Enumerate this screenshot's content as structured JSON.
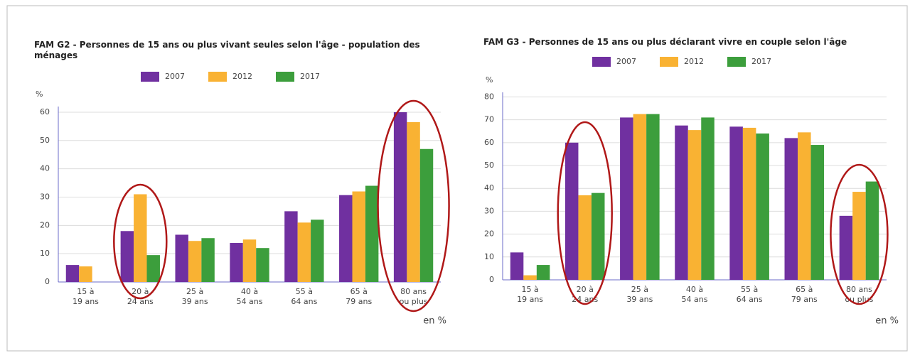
{
  "chart_data": [
    {
      "type": "bar",
      "title": "FAM G2 - Personnes de 15 ans ou plus vivant seules selon l'âge - population des ménages",
      "y_label": "%",
      "note": "en %",
      "categories": [
        "15 à\n19 ans",
        "20 à\n24 ans",
        "25 à\n39 ans",
        "40 à\n54 ans",
        "55 à\n64 ans",
        "65 à\n79 ans",
        "80 ans\nou plus"
      ],
      "series": [
        {
          "name": "2007",
          "color": "#7030a0",
          "values": [
            6,
            18,
            16.7,
            13.8,
            25,
            30.7,
            60
          ]
        },
        {
          "name": "2012",
          "color": "#f9b233",
          "values": [
            5.5,
            31,
            14.5,
            15,
            21,
            32,
            56.5
          ]
        },
        {
          "name": "2017",
          "color": "#3c9e3c",
          "values": [
            null,
            9.5,
            15.5,
            12,
            22,
            34,
            47
          ]
        }
      ],
      "ylim": [
        0,
        62
      ],
      "yticks": [
        0,
        10,
        20,
        30,
        40,
        50,
        60
      ],
      "grid": true
    },
    {
      "type": "bar",
      "title": "FAM G3 - Personnes de 15 ans ou plus déclarant vivre en couple selon l'âge",
      "y_label": "%",
      "note": "en %",
      "categories": [
        "15 à\n19 ans",
        "20 à\n24 ans",
        "25 à\n39 ans",
        "40 à\n54 ans",
        "55 à\n64 ans",
        "65 à\n79 ans",
        "80 ans\nou plus"
      ],
      "series": [
        {
          "name": "2007",
          "color": "#7030a0",
          "values": [
            12,
            60,
            71,
            67.5,
            67,
            62,
            28
          ]
        },
        {
          "name": "2012",
          "color": "#f9b233",
          "values": [
            2,
            37,
            72.5,
            65.5,
            66.5,
            64.5,
            38.5
          ]
        },
        {
          "name": "2017",
          "color": "#3c9e3c",
          "values": [
            6.5,
            38,
            72.5,
            71,
            64,
            59,
            43
          ]
        }
      ],
      "ylim": [
        0,
        82
      ],
      "yticks": [
        0,
        10,
        20,
        30,
        40,
        50,
        60,
        70,
        80
      ],
      "grid": true
    }
  ]
}
